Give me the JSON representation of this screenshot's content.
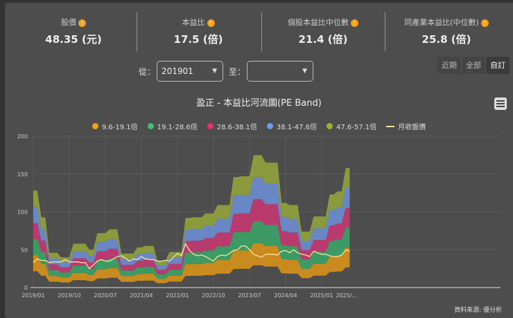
{
  "stats": [
    {
      "label": "股價",
      "value": "48.35 (元)"
    },
    {
      "label": "本益比",
      "value": "17.5 (倍)"
    },
    {
      "label": "個股本益比中位數",
      "value": "21.4 (倍)"
    },
    {
      "label": "同產業本益比(中位數)",
      "value": "25.8 (倍)"
    }
  ],
  "filter": {
    "from_label": "從：",
    "from_value": "201901",
    "to_label": "至：",
    "to_value": ""
  },
  "range_buttons": [
    "近期",
    "全部",
    "自訂"
  ],
  "source": "資料來源: 優分析",
  "colors": {
    "bands": [
      "#c98a1e",
      "#3d9a64",
      "#b93a6c",
      "#6887c4",
      "#8a9a3c"
    ],
    "legend": [
      "#f5a21a",
      "#3fbe74",
      "#e8306a",
      "#6f9bf0",
      "#a0b030"
    ],
    "price": "#f3e7a0"
  },
  "chart_data": {
    "type": "area",
    "title": "盈正 - 本益比河流圖(PE Band)",
    "legend": [
      "9.6-19.1倍",
      "19.1-28.6倍",
      "28.6-38.1倍",
      "38.1-47.6倍",
      "47.6-57.1倍",
      "月收盤價"
    ],
    "multiples": [
      9.6,
      19.1,
      28.6,
      38.1,
      47.6,
      57.1
    ],
    "start": "2019/01",
    "xticks": [
      "2019/01",
      "2019/10",
      "2020/07",
      "2021/04",
      "2022/01",
      "2022/10",
      "2023/07",
      "2024/04",
      "2025/01",
      "2025/…"
    ],
    "yticks": [
      0,
      50,
      100,
      150,
      200
    ],
    "ylim": [
      0,
      200
    ],
    "band_top_57_1x": [
      128,
      128,
      93,
      93,
      46,
      46,
      46,
      40,
      40,
      40,
      58,
      58,
      58,
      58,
      50,
      50,
      72,
      72,
      72,
      77,
      77,
      77,
      45,
      45,
      45,
      45,
      53,
      53,
      55,
      55,
      55,
      35,
      35,
      35,
      47,
      47,
      47,
      47,
      92,
      92,
      93,
      93,
      93,
      98,
      98,
      98,
      109,
      109,
      109,
      109,
      146,
      146,
      147,
      147,
      147,
      175,
      175,
      175,
      165,
      165,
      165,
      165,
      112,
      112,
      109,
      109,
      109,
      74,
      74,
      74,
      94,
      94,
      94,
      94,
      123,
      123,
      127,
      127,
      158,
      158
    ],
    "price": [
      33,
      38,
      36,
      36,
      33,
      34,
      34,
      34,
      37,
      34,
      34,
      34,
      33,
      33,
      25,
      30,
      35,
      37,
      35,
      35,
      38,
      41,
      42,
      39,
      35,
      38,
      37,
      41,
      38,
      37,
      37,
      35,
      35,
      36,
      35,
      40,
      45,
      42,
      58,
      49,
      44,
      42,
      43,
      41,
      38,
      35,
      41,
      43,
      42,
      45,
      49,
      50,
      55,
      55,
      50,
      44,
      42,
      40,
      44,
      44,
      44,
      43,
      48,
      49,
      46,
      50,
      46,
      44,
      43,
      41,
      48,
      46,
      44,
      44,
      42,
      41,
      41,
      43,
      50,
      48
    ]
  }
}
